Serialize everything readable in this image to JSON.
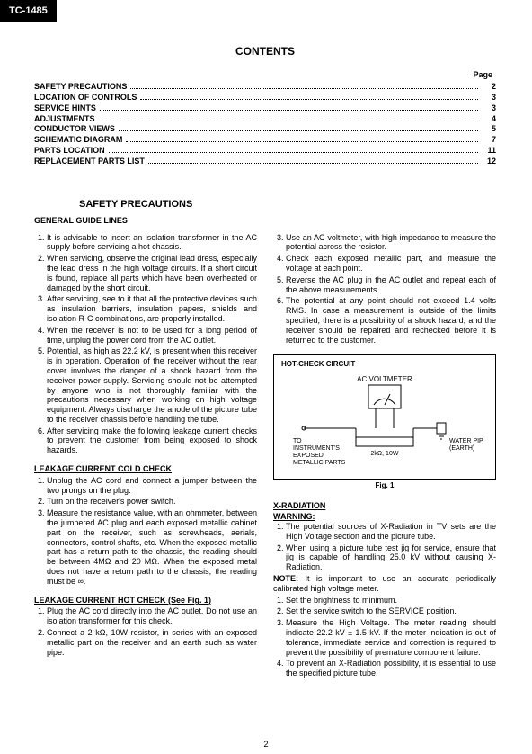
{
  "doc_label": "TC-1485",
  "contents_title": "CONTENTS",
  "page_label": "Page",
  "toc": [
    {
      "title": "SAFETY PRECAUTIONS",
      "page": "2"
    },
    {
      "title": "LOCATION OF CONTROLS",
      "page": "3"
    },
    {
      "title": "SERVICE HINTS",
      "page": "3"
    },
    {
      "title": "ADJUSTMENTS",
      "page": "4"
    },
    {
      "title": "CONDUCTOR VIEWS",
      "page": "5"
    },
    {
      "title": "SCHEMATIC DIAGRAM",
      "page": "7"
    },
    {
      "title": "PARTS LOCATION",
      "page": "11"
    },
    {
      "title": "REPLACEMENT PARTS LIST",
      "page": "12"
    }
  ],
  "section_title": "SAFETY PRECAUTIONS",
  "general_heading": "GENERAL GUIDE LINES",
  "left_list": [
    "It is advisable to insert an isolation transformer in the AC supply before servicing a hot chassis.",
    "When servicing, observe the original lead dress, especially the lead dress in the high voltage circuits. If a short circuit is found, replace all parts which have been overheated or damaged by the short circuit.",
    "After servicing, see to it that all the protective devices such as insulation barriers, insulation papers, shields and isolation R-C combinations, are properly installed.",
    "When the receiver is not to be used for a long period of time, unplug the power cord from the AC outlet.",
    "Potential, as high as 22.2 kV, is present when this receiver is in operation. Operation of the receiver without the rear cover involves the danger of a shock hazard from the receiver power supply. Servicing should not be attempted by anyone who is not thoroughly familiar with the precautions necessary when working on high voltage equipment. Always discharge the anode of the picture tube to the receiver chassis before handling the tube.",
    "After servicing make the following leakage current checks to prevent the customer from being exposed to shock hazards."
  ],
  "cold_heading": "LEAKAGE CURRENT COLD CHECK",
  "cold_list": [
    "Unplug the AC cord and connect a jumper between the two prongs on the plug.",
    "Turn on the receiver's power switch.",
    "Measure the resistance value, with an ohmmeter, between the jumpered AC plug and each exposed metallic cabinet part on the receiver, such as screwheads, aerials, connectors, control shafts, etc. When the exposed metallic part has a return path to the chassis, the reading should be between 4MΩ and 20 MΩ. When the exposed metal does not have a return path to the chassis, the reading must be ∞."
  ],
  "hot_heading": "LEAKAGE CURRENT HOT CHECK (See Fig. 1)",
  "hot_list": [
    "Plug the AC cord directly into the AC outlet. Do not use an isolation transformer for this check.",
    "Connect a 2 kΩ, 10W resistor, in series with an exposed metallic part on the receiver and an earth such as water pipe."
  ],
  "right_cont": [
    "Use an AC voltmeter, with high impedance to measure the potential across the resistor.",
    "Check each exposed metallic part, and measure the voltage at each point.",
    "Reverse the AC plug in the AC outlet and repeat each of the above measurements.",
    "The potential at any point should not exceed 1.4 volts RMS. In case a measurement is outside of the limits specified, there is a possibility of a shock hazard, and the receiver should be repaired and rechecked before it is returned to the customer."
  ],
  "fig": {
    "box_title": "HOT-CHECK CIRCUIT",
    "voltmeter": "AC VOLTMETER",
    "to": "TO",
    "instr": "INSTRUMENT'S",
    "exposed": "EXPOSED",
    "metallic": "METALLIC PARTS",
    "res": "2kΩ, 10W",
    "water": "WATER PIPE",
    "earth": "(EARTH)",
    "caption": "Fig. 1"
  },
  "xrad_heading": "X-RADIATION",
  "warning_label": "WARNING:",
  "xrad_list_a": [
    "The potential sources of X-Radiation in TV sets are the High Voltage section and the picture tube.",
    "When using a picture tube test jig for service, ensure that jig is capable of handling 25.0 kV without causing X-Radiation."
  ],
  "note_label": "NOTE:",
  "note_text": "It is important to use an accurate periodically calibrated high voltage meter.",
  "xrad_list_b": [
    "Set the brightness to minimum.",
    "Set the service switch to the SERVICE position.",
    "Measure the High Voltage. The meter reading should indicate 22.2 kV ± 1.5 kV. If the meter indication is out of tolerance, immediate service and correction is required to prevent the possibility of premature component failure.",
    "To prevent an X-Radiation possibility, it is essential to use the specified picture tube."
  ],
  "footer_page": "2"
}
